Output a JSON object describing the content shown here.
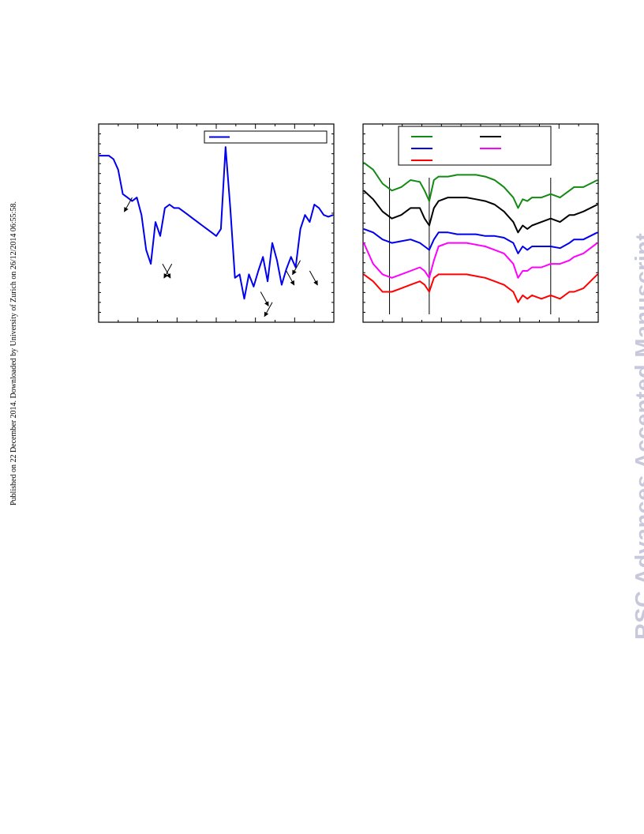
{
  "side_note": "Published on 22 December 2014. Downloaded by University of Zurich on 26/12/2014 06:55:58.",
  "watermark": "RSC Advances Accepted Manuscript",
  "colors": {
    "series_blue": "#0000ee",
    "green": "#138a13",
    "black": "#000000",
    "magenta": "#ff00ff",
    "red": "#ff0000"
  },
  "chart_data": [
    {
      "type": "line",
      "title": "",
      "xlabel": "",
      "ylabel": "",
      "x_ticks_count": 13,
      "legend": {
        "placement": "top-right",
        "entries": [
          {
            "name": "",
            "color": "#0000ee"
          }
        ]
      },
      "series": [
        {
          "name": "",
          "color": "#0000ee",
          "x": [
            0,
            2,
            4,
            6,
            8,
            10,
            12,
            14,
            16,
            18,
            20,
            22,
            24,
            26,
            28,
            30,
            32,
            34,
            36,
            38,
            40,
            42,
            44,
            46,
            48,
            50,
            52,
            54,
            56,
            58,
            60,
            62,
            64,
            66,
            68,
            70,
            72,
            74,
            76,
            78,
            80,
            82,
            84,
            86,
            88,
            90,
            92,
            94,
            96,
            98,
            100
          ],
          "values": [
            90,
            90,
            90,
            88,
            82,
            68,
            66,
            64,
            66,
            56,
            36,
            28,
            52,
            44,
            60,
            62,
            60,
            60,
            58,
            56,
            54,
            52,
            50,
            48,
            46,
            44,
            48,
            95,
            60,
            20,
            22,
            8,
            22,
            15,
            24,
            32,
            18,
            40,
            30,
            16,
            25,
            32,
            26,
            48,
            56,
            52,
            62,
            60,
            56,
            55,
            56
          ]
        }
      ],
      "annotations": [
        {
          "label": "arrow",
          "x": 14,
          "y": 66
        },
        {
          "label": "arrow",
          "x": 27,
          "y": 28
        },
        {
          "label": "arrow",
          "x": 31,
          "y": 28
        },
        {
          "label": "arrow",
          "x": 69,
          "y": 12
        },
        {
          "label": "arrow",
          "x": 74,
          "y": 6
        },
        {
          "label": "arrow",
          "x": 80,
          "y": 24
        },
        {
          "label": "arrow",
          "x": 86,
          "y": 30
        },
        {
          "label": "arrow",
          "x": 90,
          "y": 24
        }
      ]
    },
    {
      "type": "line",
      "title": "",
      "xlabel": "",
      "ylabel": "",
      "x_ticks_count": 13,
      "legend": {
        "placement": "top",
        "entries": [
          {
            "name": "",
            "color": "#138a13"
          },
          {
            "name": "",
            "color": "#000000"
          },
          {
            "name": "",
            "color": "#0000ee"
          },
          {
            "name": "",
            "color": "#ff00ff"
          },
          {
            "name": "",
            "color": "#ff0000"
          }
        ]
      },
      "reference_lines_x": [
        11,
        28,
        80
      ],
      "series": [
        {
          "name": "",
          "color": "#138a13",
          "x": [
            0,
            4,
            8,
            12,
            16,
            20,
            24,
            26,
            28,
            30,
            32,
            36,
            40,
            44,
            48,
            52,
            56,
            60,
            64,
            66,
            68,
            70,
            72,
            76,
            80,
            84,
            88,
            90,
            94,
            100
          ],
          "values": [
            86,
            82,
            74,
            70,
            72,
            76,
            75,
            70,
            64,
            76,
            78,
            78,
            79,
            79,
            79,
            78,
            76,
            72,
            66,
            60,
            65,
            64,
            66,
            66,
            68,
            66,
            70,
            72,
            72,
            76
          ]
        },
        {
          "name": "",
          "color": "#000000",
          "x": [
            0,
            4,
            8,
            12,
            16,
            20,
            24,
            26,
            28,
            30,
            32,
            36,
            40,
            44,
            48,
            52,
            56,
            60,
            64,
            66,
            68,
            70,
            72,
            76,
            80,
            84,
            88,
            90,
            94,
            100
          ],
          "values": [
            70,
            65,
            58,
            54,
            56,
            60,
            60,
            54,
            50,
            60,
            64,
            66,
            66,
            66,
            65,
            64,
            62,
            58,
            52,
            46,
            50,
            48,
            50,
            52,
            54,
            52,
            56,
            56,
            58,
            62
          ]
        },
        {
          "name": "",
          "color": "#0000ee",
          "x": [
            0,
            4,
            8,
            12,
            16,
            20,
            24,
            26,
            28,
            30,
            32,
            36,
            40,
            44,
            48,
            52,
            56,
            60,
            64,
            66,
            68,
            70,
            72,
            76,
            80,
            84,
            88,
            90,
            94,
            100
          ],
          "values": [
            48,
            46,
            42,
            40,
            41,
            42,
            40,
            38,
            36,
            42,
            46,
            46,
            45,
            45,
            45,
            44,
            44,
            43,
            40,
            34,
            38,
            36,
            38,
            38,
            38,
            37,
            40,
            42,
            42,
            46
          ]
        },
        {
          "name": "",
          "color": "#ff00ff",
          "x": [
            0,
            4,
            8,
            12,
            16,
            20,
            24,
            26,
            28,
            30,
            32,
            36,
            40,
            44,
            48,
            52,
            56,
            60,
            64,
            66,
            68,
            70,
            72,
            76,
            80,
            84,
            88,
            90,
            94,
            100
          ],
          "values": [
            40,
            28,
            22,
            20,
            22,
            24,
            26,
            24,
            20,
            30,
            38,
            40,
            40,
            40,
            39,
            38,
            36,
            34,
            28,
            20,
            24,
            24,
            26,
            26,
            28,
            28,
            30,
            32,
            34,
            40
          ]
        },
        {
          "name": "",
          "color": "#ff0000",
          "x": [
            0,
            4,
            8,
            12,
            16,
            20,
            24,
            26,
            28,
            30,
            32,
            36,
            40,
            44,
            48,
            52,
            56,
            60,
            64,
            66,
            68,
            70,
            72,
            76,
            80,
            84,
            88,
            90,
            94,
            100
          ],
          "values": [
            22,
            18,
            12,
            12,
            14,
            16,
            18,
            16,
            12,
            20,
            22,
            22,
            22,
            22,
            21,
            20,
            18,
            16,
            12,
            6,
            10,
            8,
            10,
            8,
            10,
            8,
            12,
            12,
            14,
            22
          ]
        }
      ]
    }
  ]
}
